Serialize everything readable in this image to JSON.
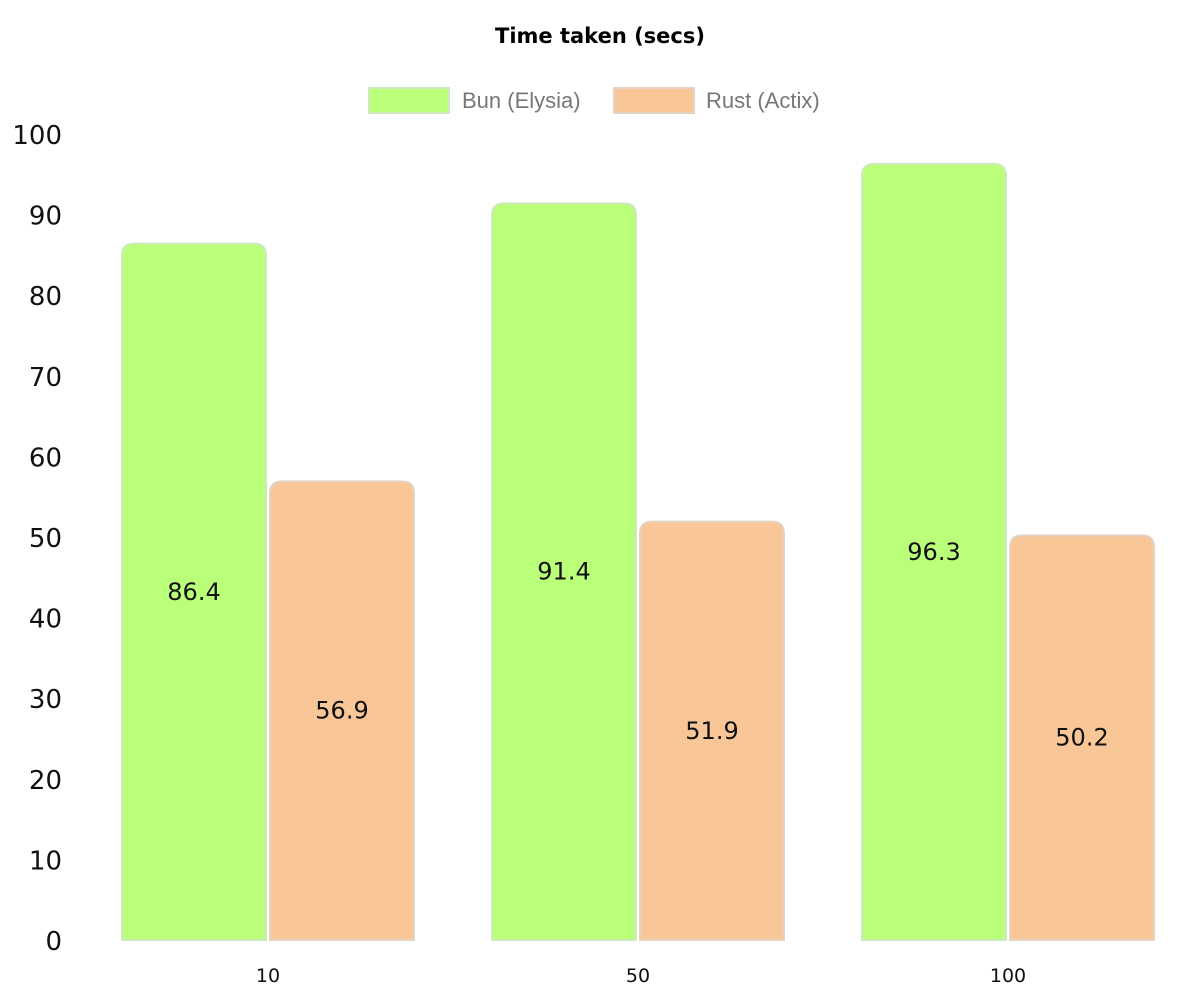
{
  "chart_data": {
    "type": "bar",
    "title": "Time taken (secs)",
    "xlabel": "",
    "ylabel": "",
    "categories": [
      "10",
      "50",
      "100"
    ],
    "series": [
      {
        "name": "Bun (Elysia)",
        "values": [
          86.4,
          91.4,
          96.3
        ],
        "color": "#b9ff79",
        "border_color": "#cfe9bc"
      },
      {
        "name": "Rust (Actix)",
        "values": [
          56.9,
          51.9,
          50.2
        ],
        "color": "#f8c697",
        "border_color": "#e4d2c3"
      }
    ],
    "ylim": [
      0,
      100
    ],
    "yticks": [
      0,
      10,
      20,
      30,
      40,
      50,
      60,
      70,
      80,
      90,
      100
    ],
    "grid": false,
    "legend_position": "top-center",
    "data_labels": true
  }
}
